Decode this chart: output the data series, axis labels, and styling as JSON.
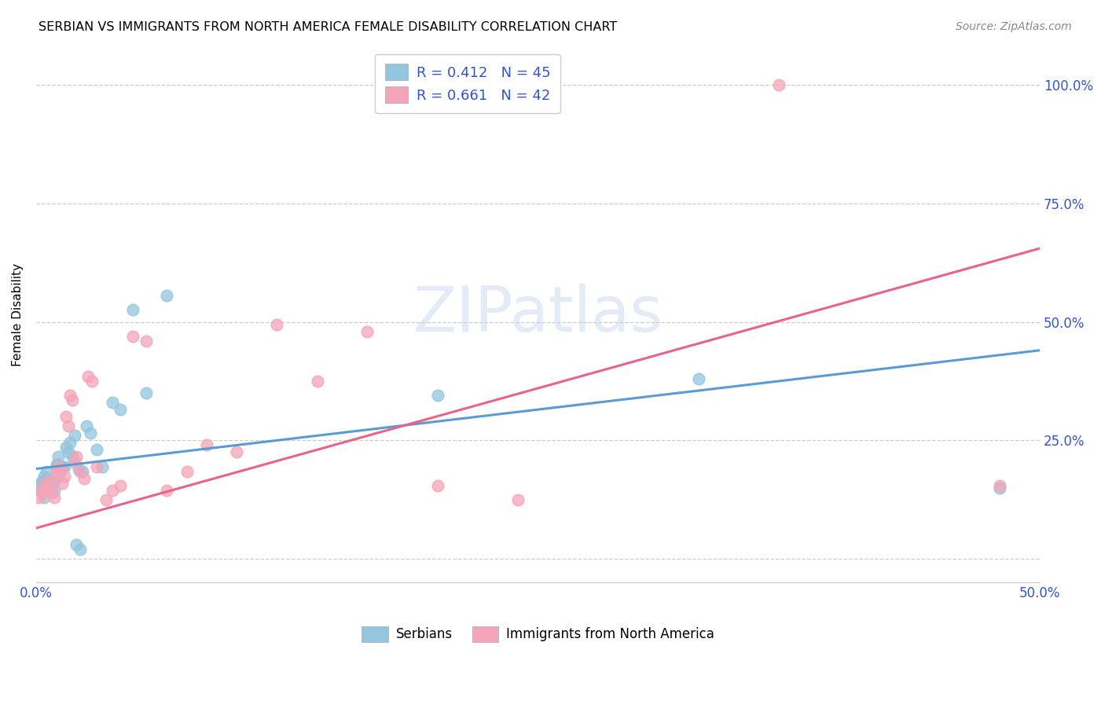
{
  "title": "SERBIAN VS IMMIGRANTS FROM NORTH AMERICA FEMALE DISABILITY CORRELATION CHART",
  "source": "Source: ZipAtlas.com",
  "ylabel": "Female Disability",
  "xlim": [
    0.0,
    0.5
  ],
  "ylim": [
    -0.05,
    1.08
  ],
  "ytick_positions": [
    0.0,
    0.25,
    0.5,
    0.75,
    1.0
  ],
  "ytick_labels": [
    "",
    "25.0%",
    "50.0%",
    "75.0%",
    "100.0%"
  ],
  "legend_label1": "R = 0.412   N = 45",
  "legend_label2": "R = 0.661   N = 42",
  "legend_label_bottom1": "Serbians",
  "legend_label_bottom2": "Immigrants from North America",
  "blue_color": "#92c5de",
  "pink_color": "#f4a4b8",
  "blue_line_color": "#5b9bd5",
  "pink_line_color": "#e8638a",
  "legend_text_color": "#3355cc",
  "watermark_color": "#c8d8ee",
  "serbian_x": [
    0.001,
    0.002,
    0.002,
    0.003,
    0.003,
    0.004,
    0.004,
    0.005,
    0.005,
    0.006,
    0.006,
    0.007,
    0.007,
    0.008,
    0.008,
    0.009,
    0.009,
    0.01,
    0.01,
    0.011,
    0.011,
    0.012,
    0.013,
    0.014,
    0.015,
    0.016,
    0.017,
    0.018,
    0.019,
    0.02,
    0.021,
    0.022,
    0.023,
    0.025,
    0.027,
    0.03,
    0.033,
    0.038,
    0.042,
    0.048,
    0.055,
    0.065,
    0.2,
    0.33,
    0.48
  ],
  "serbian_y": [
    0.155,
    0.145,
    0.16,
    0.165,
    0.155,
    0.13,
    0.175,
    0.185,
    0.145,
    0.165,
    0.17,
    0.155,
    0.145,
    0.165,
    0.16,
    0.145,
    0.165,
    0.2,
    0.195,
    0.215,
    0.2,
    0.185,
    0.195,
    0.195,
    0.235,
    0.225,
    0.245,
    0.215,
    0.26,
    0.03,
    0.19,
    0.02,
    0.185,
    0.28,
    0.265,
    0.23,
    0.195,
    0.33,
    0.315,
    0.525,
    0.35,
    0.555,
    0.345,
    0.38,
    0.15
  ],
  "immigrant_x": [
    0.001,
    0.002,
    0.003,
    0.004,
    0.005,
    0.006,
    0.007,
    0.008,
    0.009,
    0.01,
    0.01,
    0.011,
    0.012,
    0.013,
    0.014,
    0.015,
    0.016,
    0.017,
    0.018,
    0.019,
    0.02,
    0.022,
    0.024,
    0.026,
    0.028,
    0.03,
    0.035,
    0.038,
    0.042,
    0.048,
    0.055,
    0.065,
    0.075,
    0.085,
    0.1,
    0.12,
    0.14,
    0.165,
    0.2,
    0.24,
    0.37,
    0.48
  ],
  "immigrant_y": [
    0.13,
    0.145,
    0.14,
    0.155,
    0.145,
    0.165,
    0.155,
    0.14,
    0.13,
    0.175,
    0.185,
    0.195,
    0.19,
    0.16,
    0.175,
    0.3,
    0.28,
    0.345,
    0.335,
    0.205,
    0.215,
    0.185,
    0.17,
    0.385,
    0.375,
    0.195,
    0.125,
    0.145,
    0.155,
    0.47,
    0.46,
    0.145,
    0.185,
    0.24,
    0.225,
    0.495,
    0.375,
    0.48,
    0.155,
    0.125,
    1.0,
    0.155
  ],
  "blue_line_x": [
    0.0,
    0.5
  ],
  "blue_line_y": [
    0.19,
    0.44
  ],
  "pink_line_x": [
    0.0,
    0.5
  ],
  "pink_line_y": [
    0.065,
    0.655
  ]
}
